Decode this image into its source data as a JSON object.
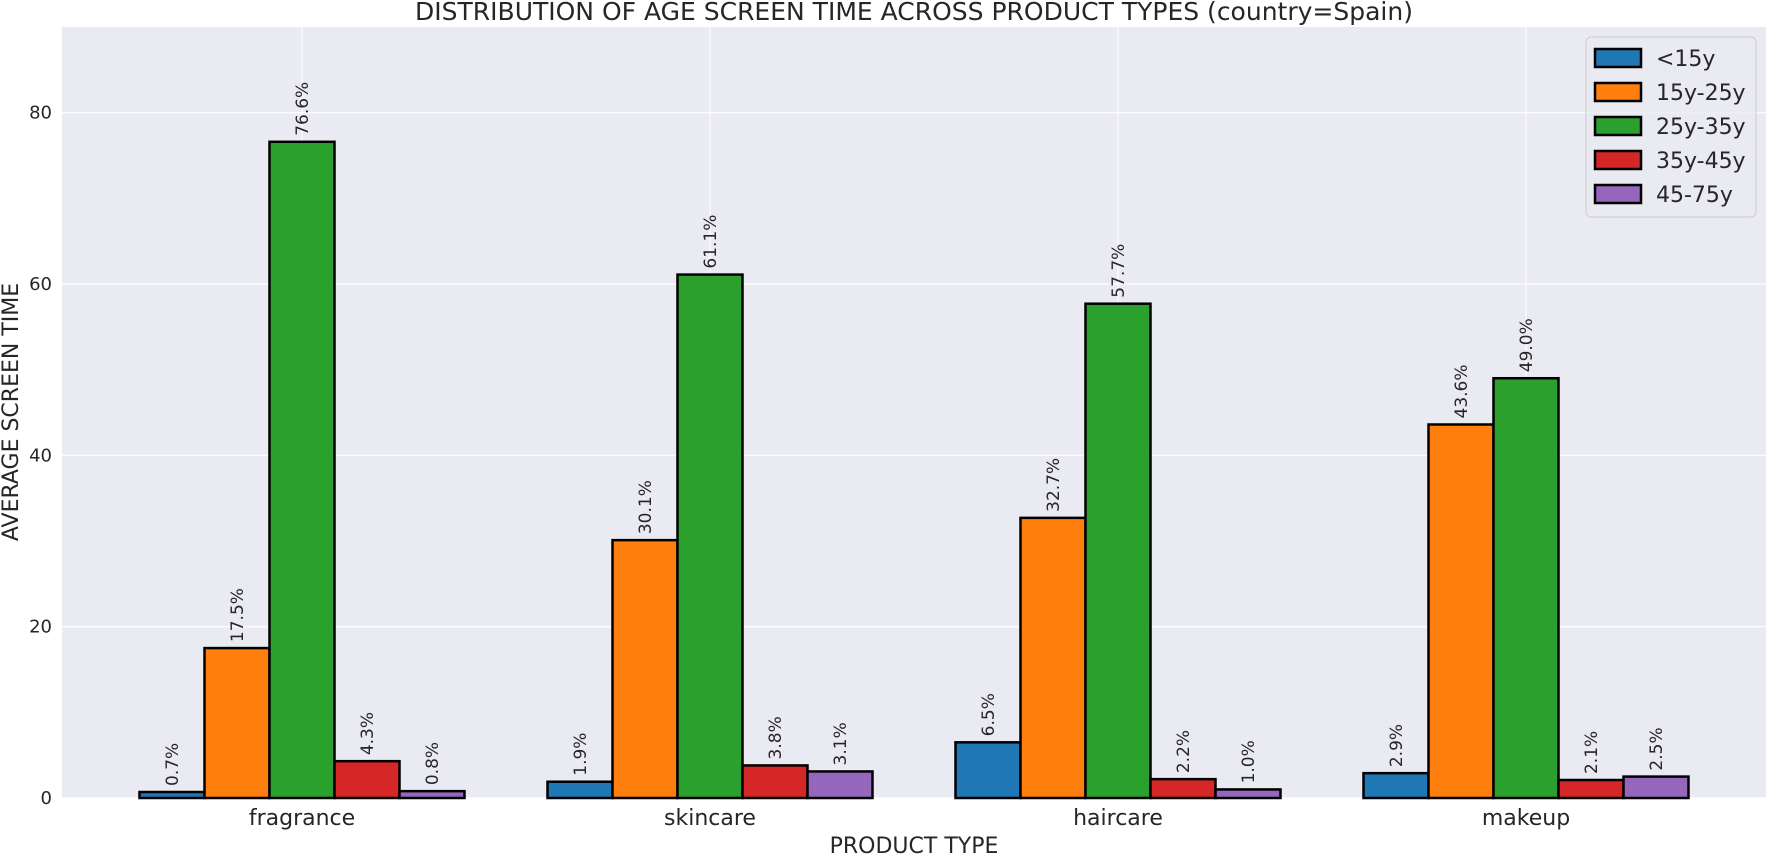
{
  "chart_data": {
    "type": "bar",
    "title": "DISTRIBUTION OF AGE SCREEN TIME ACROSS PRODUCT TYPES (country=Spain)",
    "xlabel": "PRODUCT TYPE",
    "ylabel": "AVERAGE SCREEN TIME",
    "categories": [
      "fragrance",
      "skincare",
      "haircare",
      "makeup"
    ],
    "ylim": [
      0,
      90
    ],
    "yticks": [
      0,
      20,
      40,
      60,
      80
    ],
    "grid": true,
    "legend_position": "top-right",
    "series": [
      {
        "name": "<15y",
        "color": "#1f77b4",
        "values": [
          0.7,
          1.9,
          6.5,
          2.9
        ],
        "labels": [
          "0.7%",
          "1.9%",
          "6.5%",
          "2.9%"
        ]
      },
      {
        "name": "15y-25y",
        "color": "#ff7f0e",
        "values": [
          17.5,
          30.1,
          32.7,
          43.6
        ],
        "labels": [
          "17.5%",
          "30.1%",
          "32.7%",
          "43.6%"
        ]
      },
      {
        "name": "25y-35y",
        "color": "#2ca02c",
        "values": [
          76.6,
          61.1,
          57.7,
          49.0
        ],
        "labels": [
          "76.6%",
          "61.1%",
          "57.7%",
          "49.0%"
        ]
      },
      {
        "name": "35y-45y",
        "color": "#d62728",
        "values": [
          4.3,
          3.8,
          2.2,
          2.1
        ],
        "labels": [
          "4.3%",
          "3.8%",
          "2.2%",
          "2.1%"
        ]
      },
      {
        "name": "45-75y",
        "color": "#9467bd",
        "values": [
          0.8,
          3.1,
          1.0,
          2.5
        ],
        "labels": [
          "0.8%",
          "3.1%",
          "1.0%",
          "2.5%"
        ]
      }
    ]
  }
}
